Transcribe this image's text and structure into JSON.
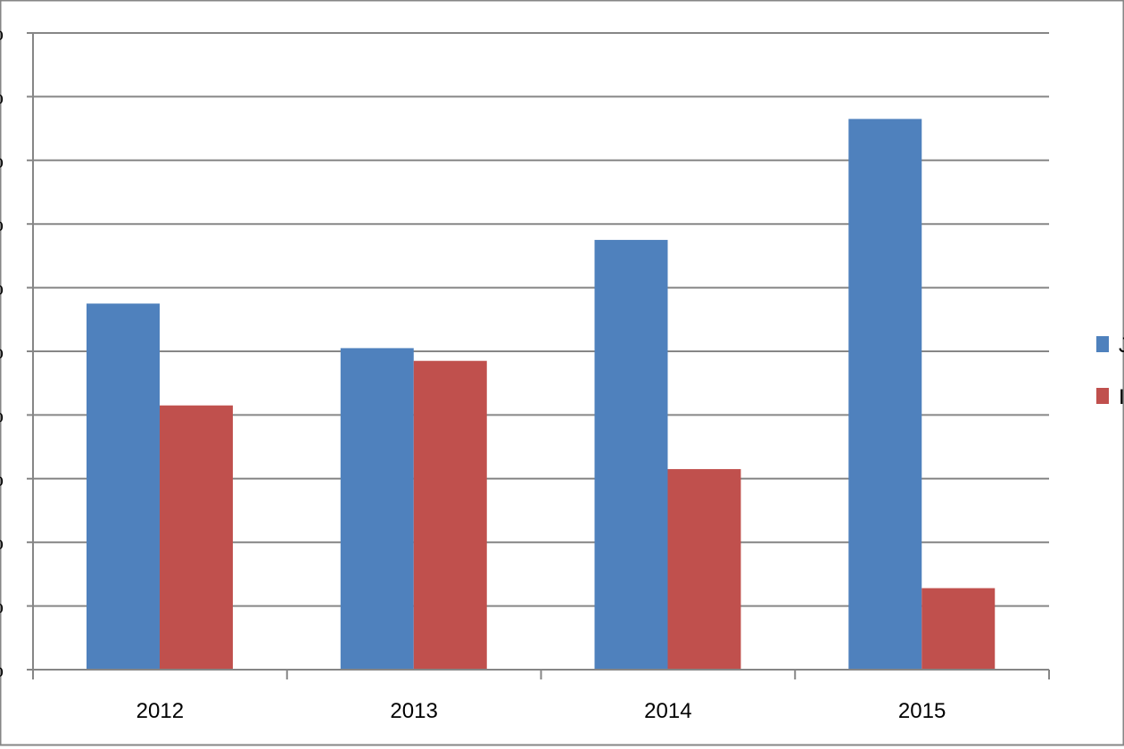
{
  "chart_data": {
    "type": "bar",
    "categories": [
      "2012",
      "2013",
      "2014",
      "2015"
    ],
    "y_tick_labels": [
      "%",
      "%",
      "%",
      "%",
      "%",
      "%",
      "%",
      "%",
      "%",
      "%",
      "%"
    ],
    "ylim": [
      0,
      10
    ],
    "grid": true,
    "legend_position": "right",
    "series": [
      {
        "color": "#4F81BD",
        "values": [
          5.75,
          5.05,
          6.75,
          8.65
        ],
        "legend_text": "J"
      },
      {
        "color": "#C0504D",
        "values": [
          4.15,
          4.85,
          3.15,
          1.28
        ],
        "legend_text": "I"
      }
    ]
  }
}
